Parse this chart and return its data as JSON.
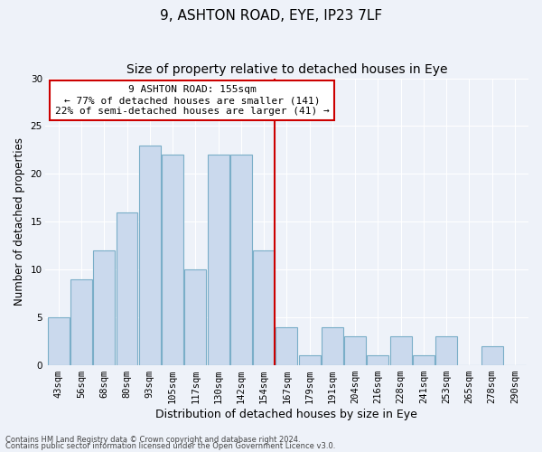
{
  "title": "9, ASHTON ROAD, EYE, IP23 7LF",
  "subtitle": "Size of property relative to detached houses in Eye",
  "xlabel": "Distribution of detached houses by size in Eye",
  "ylabel": "Number of detached properties",
  "bar_labels": [
    "43sqm",
    "56sqm",
    "68sqm",
    "80sqm",
    "93sqm",
    "105sqm",
    "117sqm",
    "130sqm",
    "142sqm",
    "154sqm",
    "167sqm",
    "179sqm",
    "191sqm",
    "204sqm",
    "216sqm",
    "228sqm",
    "241sqm",
    "253sqm",
    "265sqm",
    "278sqm",
    "290sqm"
  ],
  "bar_values": [
    5,
    9,
    12,
    16,
    23,
    22,
    10,
    22,
    22,
    12,
    4,
    1,
    4,
    3,
    1,
    3,
    1,
    3,
    0,
    2,
    0
  ],
  "bar_color": "#cad9ed",
  "bar_edge_color": "#7aaec8",
  "reference_line_idx": 9,
  "ylim": [
    0,
    30
  ],
  "yticks": [
    0,
    5,
    10,
    15,
    20,
    25,
    30
  ],
  "annotation_text": "9 ASHTON ROAD: 155sqm\n← 77% of detached houses are smaller (141)\n22% of semi-detached houses are larger (41) →",
  "annotation_box_color": "#ffffff",
  "annotation_box_edge_color": "#cc0000",
  "footnote1": "Contains HM Land Registry data © Crown copyright and database right 2024.",
  "footnote2": "Contains public sector information licensed under the Open Government Licence v3.0.",
  "background_color": "#eef2f9",
  "grid_color": "#ffffff",
  "title_fontsize": 11,
  "subtitle_fontsize": 10,
  "xlabel_fontsize": 9,
  "ylabel_fontsize": 8.5,
  "tick_fontsize": 7.5,
  "annotation_fontsize": 8
}
